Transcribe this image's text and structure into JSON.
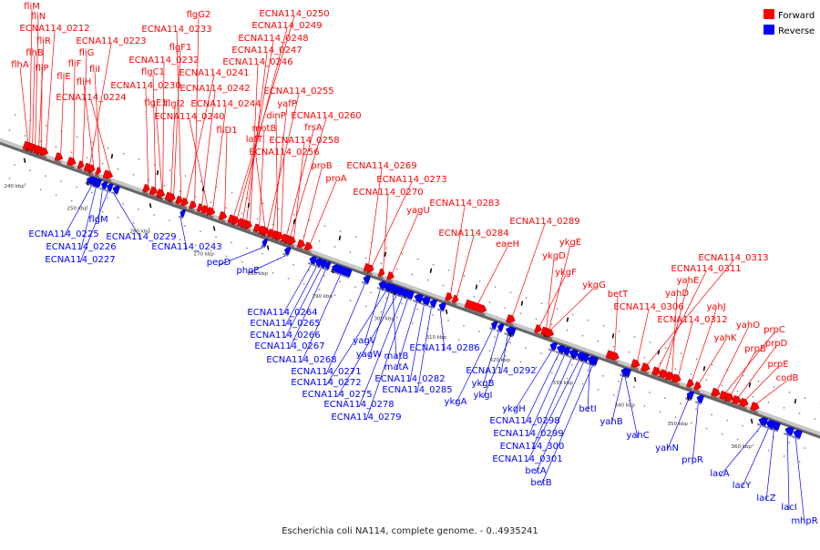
{
  "caption": "Escherichia coli NA114, complete genome. - 0..4935241",
  "legend": {
    "forward": {
      "label": "Forward",
      "color": "#ff0000"
    },
    "reverse": {
      "label": "Reverse",
      "color": "#0000ff"
    }
  },
  "ticks": [
    {
      "label": "240 kbp"
    },
    {
      "label": "250 kbp"
    },
    {
      "label": "260 kbp"
    },
    {
      "label": "270 kbp"
    },
    {
      "label": "280 kbp"
    },
    {
      "label": "290 kbp"
    },
    {
      "label": "300 kbp"
    },
    {
      "label": "310 kbp"
    },
    {
      "label": "320 kbp"
    },
    {
      "label": "330 kbp"
    },
    {
      "label": "340 kbp"
    },
    {
      "label": "350 kbp"
    },
    {
      "label": "360 kbp"
    }
  ],
  "forward_genes": [
    {
      "label": "fliM"
    },
    {
      "label": "fliN"
    },
    {
      "label": "fliR"
    },
    {
      "label": "flhB"
    },
    {
      "label": "flhA"
    },
    {
      "label": "fliP"
    },
    {
      "label": "ECNA114_0212"
    },
    {
      "label": "ECNA114_0223"
    },
    {
      "label": "fliG"
    },
    {
      "label": "fliF"
    },
    {
      "label": "fliE"
    },
    {
      "label": "fliI"
    },
    {
      "label": "fliH"
    },
    {
      "label": "ECNA114_0224"
    },
    {
      "label": "flgG2"
    },
    {
      "label": "ECNA114_0233"
    },
    {
      "label": "flgF1"
    },
    {
      "label": "ECNA114_0232"
    },
    {
      "label": "flgC1"
    },
    {
      "label": "ECNA114_0230"
    },
    {
      "label": "flgE1"
    },
    {
      "label": "flgI2"
    },
    {
      "label": "ECNA114_0240"
    },
    {
      "label": "ECNA114_0241"
    },
    {
      "label": "ECNA114_0242"
    },
    {
      "label": "ECNA114_0244"
    },
    {
      "label": "fliD1"
    },
    {
      "label": "ECNA114_0250"
    },
    {
      "label": "ECNA114_0249"
    },
    {
      "label": "ECNA114_0248"
    },
    {
      "label": "ECNA114_0247"
    },
    {
      "label": "ECNA114_0246"
    },
    {
      "label": "ECNA114_0255"
    },
    {
      "label": "yafP"
    },
    {
      "label": "dinP"
    },
    {
      "label": "motB"
    },
    {
      "label": "lafT"
    },
    {
      "label": "ECNA114_0260"
    },
    {
      "label": "frsA"
    },
    {
      "label": "ECNA114_0258"
    },
    {
      "label": "ECNA114_0256"
    },
    {
      "label": "proB"
    },
    {
      "label": "proA"
    },
    {
      "label": "ECNA114_0269"
    },
    {
      "label": "ECNA114_0273"
    },
    {
      "label": "ECNA114_0270"
    },
    {
      "label": "yagU"
    },
    {
      "label": "ECNA114_0283"
    },
    {
      "label": "ECNA114_0284"
    },
    {
      "label": "ECNA114_0289"
    },
    {
      "label": "eaeH"
    },
    {
      "label": "ykgE"
    },
    {
      "label": "ykgD"
    },
    {
      "label": "ykgF"
    },
    {
      "label": "ykgG"
    },
    {
      "label": "betT"
    },
    {
      "label": "ECNA114_0306"
    },
    {
      "label": "ECNA114_0313"
    },
    {
      "label": "ECNA114_0311"
    },
    {
      "label": "yahE"
    },
    {
      "label": "yahD"
    },
    {
      "label": "yahJ"
    },
    {
      "label": "ECNA114_0312"
    },
    {
      "label": "yahK"
    },
    {
      "label": "yahO"
    },
    {
      "label": "prpC"
    },
    {
      "label": "prpB"
    },
    {
      "label": "prpD"
    },
    {
      "label": "prpE"
    },
    {
      "label": "codB"
    }
  ],
  "reverse_genes": [
    {
      "label": "ECNA114_0225"
    },
    {
      "label": "flgM"
    },
    {
      "label": "ECNA114_0226"
    },
    {
      "label": "ECNA114_0227"
    },
    {
      "label": "ECNA114_0229"
    },
    {
      "label": "ECNA114_0243"
    },
    {
      "label": "pepD"
    },
    {
      "label": "phoE"
    },
    {
      "label": "ECNA114_0264"
    },
    {
      "label": "ECNA114_0265"
    },
    {
      "label": "ECNA114_0266"
    },
    {
      "label": "ECNA114_0267"
    },
    {
      "label": "ECNA114_0268"
    },
    {
      "label": "ECNA114_0271"
    },
    {
      "label": "ECNA114_0272"
    },
    {
      "label": "ECNA114_0275"
    },
    {
      "label": "ECNA114_0278"
    },
    {
      "label": "ECNA114_0279"
    },
    {
      "label": "yagV"
    },
    {
      "label": "yagW"
    },
    {
      "label": "matB"
    },
    {
      "label": "matA"
    },
    {
      "label": "ECNA114_0282"
    },
    {
      "label": "ECNA114_0285"
    },
    {
      "label": "ECNA114_0286"
    },
    {
      "label": "ykgA"
    },
    {
      "label": "ECNA114_0292"
    },
    {
      "label": "ykgB"
    },
    {
      "label": "ykgI"
    },
    {
      "label": "ykgH"
    },
    {
      "label": "ECNA114_0298"
    },
    {
      "label": "ECNA114_0299"
    },
    {
      "label": "ECNA114_300"
    },
    {
      "label": "ECNA114_0301"
    },
    {
      "label": "betA"
    },
    {
      "label": "betB"
    },
    {
      "label": "betI"
    },
    {
      "label": "yahB"
    },
    {
      "label": "yahC"
    },
    {
      "label": "yahN"
    },
    {
      "label": "prpR"
    },
    {
      "label": "lacA"
    },
    {
      "label": "lacY"
    },
    {
      "label": "lacZ"
    },
    {
      "label": "lacI"
    },
    {
      "label": "mhpR"
    }
  ]
}
